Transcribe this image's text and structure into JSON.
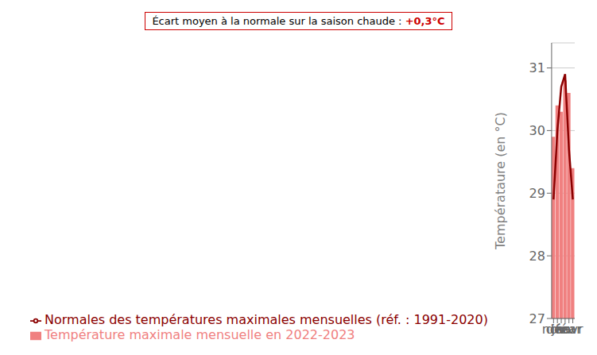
{
  "chart_data": {
    "type": "bar",
    "categories": [
      "nov",
      "déc",
      "jan",
      "fév",
      "mar",
      "avr"
    ],
    "series": [
      {
        "name": "Température maximale mensuelle en 2022-2023",
        "type": "bar",
        "color": "#F08080",
        "values": [
          29.9,
          30.4,
          30.3,
          30.8,
          30.6,
          29.4
        ]
      },
      {
        "name": "Normales des températures maximales mensuelles (réf. : 1991-2020)",
        "type": "line",
        "color": "#8B0000",
        "values": [
          28.9,
          30.0,
          30.7,
          30.9,
          29.7,
          28.9
        ]
      }
    ],
    "ylabel": "Températaure (en °C)",
    "annotation": [
      {
        "text": "Écart moyen à la normale sur la saison chaude : "
      },
      {
        "text": "+0,3°C",
        "color": "#cc0000"
      }
    ],
    "ylim": [
      27,
      31.4
    ],
    "yticks": [
      27,
      28,
      29,
      30,
      31
    ],
    "grid": true,
    "legend": "lower left"
  }
}
